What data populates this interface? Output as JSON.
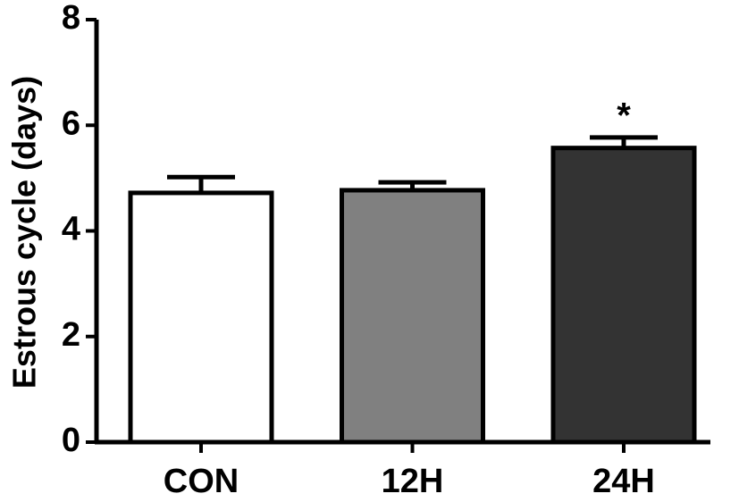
{
  "chart_data": {
    "type": "bar",
    "ylabel": "Estrous cycle (days)",
    "categories": [
      "CON",
      "12H",
      "24H"
    ],
    "values": [
      4.72,
      4.77,
      5.57
    ],
    "errors": [
      0.3,
      0.15,
      0.2
    ],
    "colors": [
      "#ffffff",
      "#808080",
      "#333333"
    ],
    "ylim": [
      0,
      8
    ],
    "yticks": [
      0,
      2,
      4,
      6,
      8
    ],
    "annotations": [
      {
        "text": "*",
        "category": "24H"
      }
    ]
  }
}
